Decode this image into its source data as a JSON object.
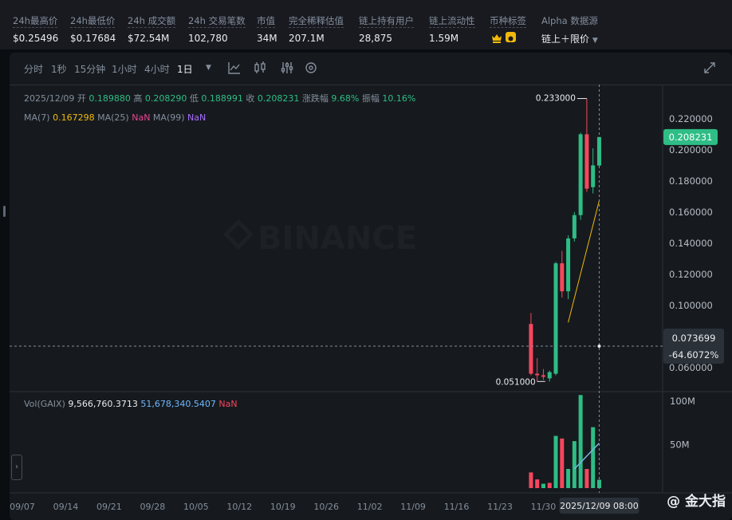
{
  "stats": [
    {
      "label": "24h最高价",
      "value": "$0.25496"
    },
    {
      "label": "24h最低价",
      "value": "$0.17684"
    },
    {
      "label": "24h 成交额",
      "value": "$72.54M"
    },
    {
      "label": "24h 交易笔数",
      "value": "102,780"
    },
    {
      "label": "市值",
      "value": "34M"
    },
    {
      "label": "完全稀释估值",
      "value": "207.1M"
    },
    {
      "label": "链上持有用户",
      "value": "28,875"
    },
    {
      "label": "链上流动性",
      "value": "1.59M"
    },
    {
      "label": "币种标签",
      "value": ""
    },
    {
      "label": "Alpha 数据源",
      "value": "链上＋限价"
    }
  ],
  "toolbar": {
    "intervals": [
      "分时",
      "1秒",
      "15分钟",
      "1小时",
      "4小时",
      "1日"
    ],
    "active": "1日"
  },
  "ohlc": {
    "date": "2025/12/09",
    "open_label": "开",
    "open": "0.189880",
    "high_label": "高",
    "high": "0.208290",
    "low_label": "低",
    "low": "0.188991",
    "close_label": "收",
    "close": "0.208231",
    "change_label": "涨跌幅",
    "change": "9.68%",
    "amp_label": "振幅",
    "amp": "10.16%"
  },
  "ma": {
    "ma7_label": "MA(7)",
    "ma7": "0.167298",
    "ma25_label": "MA(25)",
    "ma25": "NaN",
    "ma99_label": "MA(99)",
    "ma99": "NaN"
  },
  "vol": {
    "label": "Vol(GAIX)",
    "v1": "9,566,760.3713",
    "v2": "51,678,340.5407",
    "v3": "NaN"
  },
  "watermark": "BINANCE",
  "price_tags": {
    "last": "0.208231",
    "crosshair": "0.073699",
    "crosshair_pct": "-64.6072%",
    "high": "0.233000",
    "low": "0.051000"
  },
  "crosshair_time": "2025/12/09 08:00",
  "footer_watermark": "@ 金大指",
  "chart_data": {
    "type": "candlestick",
    "price_axis": {
      "ticks": [
        "0.220000",
        "0.200000",
        "0.180000",
        "0.160000",
        "0.140000",
        "0.120000",
        "0.100000",
        "0.060000"
      ],
      "range": [
        0.045,
        0.242
      ]
    },
    "volume_axis": {
      "ticks": [
        "100M",
        "50M"
      ],
      "range": [
        0,
        110000000
      ]
    },
    "x_ticks": [
      "09/07",
      "09/14",
      "09/21",
      "09/28",
      "10/05",
      "10/12",
      "10/19",
      "10/26",
      "11/02",
      "11/09",
      "11/16",
      "11/23",
      "11/30"
    ],
    "candles": [
      {
        "date": "11/28",
        "open": 0.088,
        "high": 0.095,
        "low": 0.055,
        "close": 0.056
      },
      {
        "date": "11/29",
        "open": 0.056,
        "high": 0.066,
        "low": 0.051,
        "close": 0.055
      },
      {
        "date": "11/30",
        "open": 0.055,
        "high": 0.059,
        "low": 0.052,
        "close": 0.054
      },
      {
        "date": "12/01",
        "open": 0.053,
        "high": 0.058,
        "low": 0.051,
        "close": 0.057
      },
      {
        "date": "12/02",
        "open": 0.056,
        "high": 0.128,
        "low": 0.055,
        "close": 0.127
      },
      {
        "date": "12/03",
        "open": 0.127,
        "high": 0.135,
        "low": 0.105,
        "close": 0.109
      },
      {
        "date": "12/04",
        "open": 0.109,
        "high": 0.145,
        "low": 0.104,
        "close": 0.143
      },
      {
        "date": "12/05",
        "open": 0.143,
        "high": 0.16,
        "low": 0.141,
        "close": 0.158
      },
      {
        "date": "12/06",
        "open": 0.158,
        "high": 0.211,
        "low": 0.155,
        "close": 0.21
      },
      {
        "date": "12/07",
        "open": 0.21,
        "high": 0.233,
        "low": 0.173,
        "close": 0.175
      },
      {
        "date": "12/08",
        "open": 0.176,
        "high": 0.201,
        "low": 0.172,
        "close": 0.19
      },
      {
        "date": "12/09",
        "open": 0.18988,
        "high": 0.20829,
        "low": 0.188991,
        "close": 0.208231
      }
    ],
    "ma7": [
      {
        "date": "12/04",
        "value": 0.089
      },
      {
        "date": "12/09",
        "value": 0.167298
      }
    ],
    "volumes": [
      {
        "date": "11/28",
        "value": 18000000,
        "up": false
      },
      {
        "date": "11/29",
        "value": 10000000,
        "up": false
      },
      {
        "date": "11/30",
        "value": 5000000,
        "up": true
      },
      {
        "date": "12/01",
        "value": 6000000,
        "up": false
      },
      {
        "date": "12/02",
        "value": 60000000,
        "up": true
      },
      {
        "date": "12/03",
        "value": 57000000,
        "up": false
      },
      {
        "date": "12/04",
        "value": 22000000,
        "up": true
      },
      {
        "date": "12/05",
        "value": 54000000,
        "up": true
      },
      {
        "date": "12/06",
        "value": 107000000,
        "up": true
      },
      {
        "date": "12/07",
        "value": 22000000,
        "up": false
      },
      {
        "date": "12/08",
        "value": 70000000,
        "up": true
      },
      {
        "date": "12/09",
        "value": 9566760,
        "up": true
      }
    ],
    "vol_ma": [
      {
        "date": "12/05",
        "value": 22000000
      },
      {
        "date": "12/09",
        "value": 51678340
      }
    ],
    "crosshair": {
      "date": "12/09",
      "price": 0.073699
    }
  }
}
